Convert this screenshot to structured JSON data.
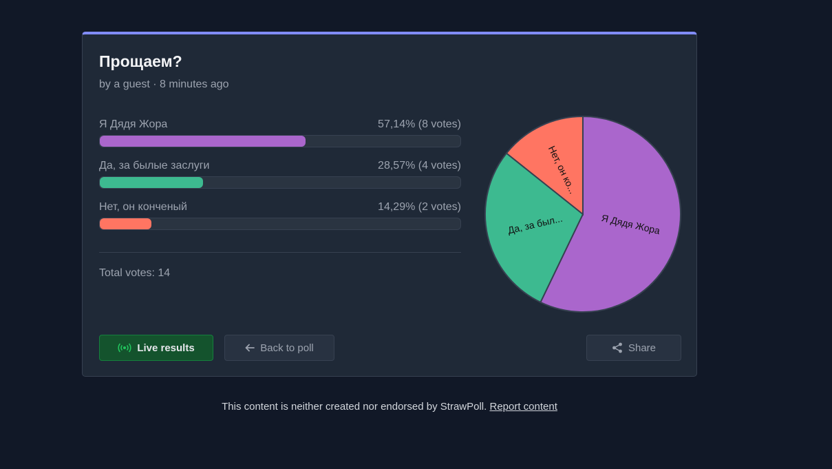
{
  "poll": {
    "title": "Прощаем?",
    "subtitle": "by a guest · 8 minutes ago",
    "options": [
      {
        "label": "Я Дядя Жора",
        "result": "57,14% (8 votes)",
        "fraction": 0.5714,
        "color": "#aa66cc",
        "pie_label": "Я Дядя Жора"
      },
      {
        "label": "Да, за былые заслуги",
        "result": "28,57% (4 votes)",
        "fraction": 0.2857,
        "color": "#3dba90",
        "pie_label": "Да, за был..."
      },
      {
        "label": "Нет, он конченый",
        "result": "14,29% (2 votes)",
        "fraction": 0.1429,
        "color": "#ff7562",
        "pie_label": "Нет, он ко..."
      }
    ],
    "total": "Total votes: 14"
  },
  "buttons": {
    "live": "Live results",
    "back": "Back to poll",
    "share": "Share"
  },
  "footer": {
    "text": "This content is neither created nor endorsed by StrawPoll.",
    "link": "Report content"
  },
  "icons": {
    "live": "broadcast-icon",
    "back": "arrow-left-icon",
    "share": "share-icon"
  }
}
